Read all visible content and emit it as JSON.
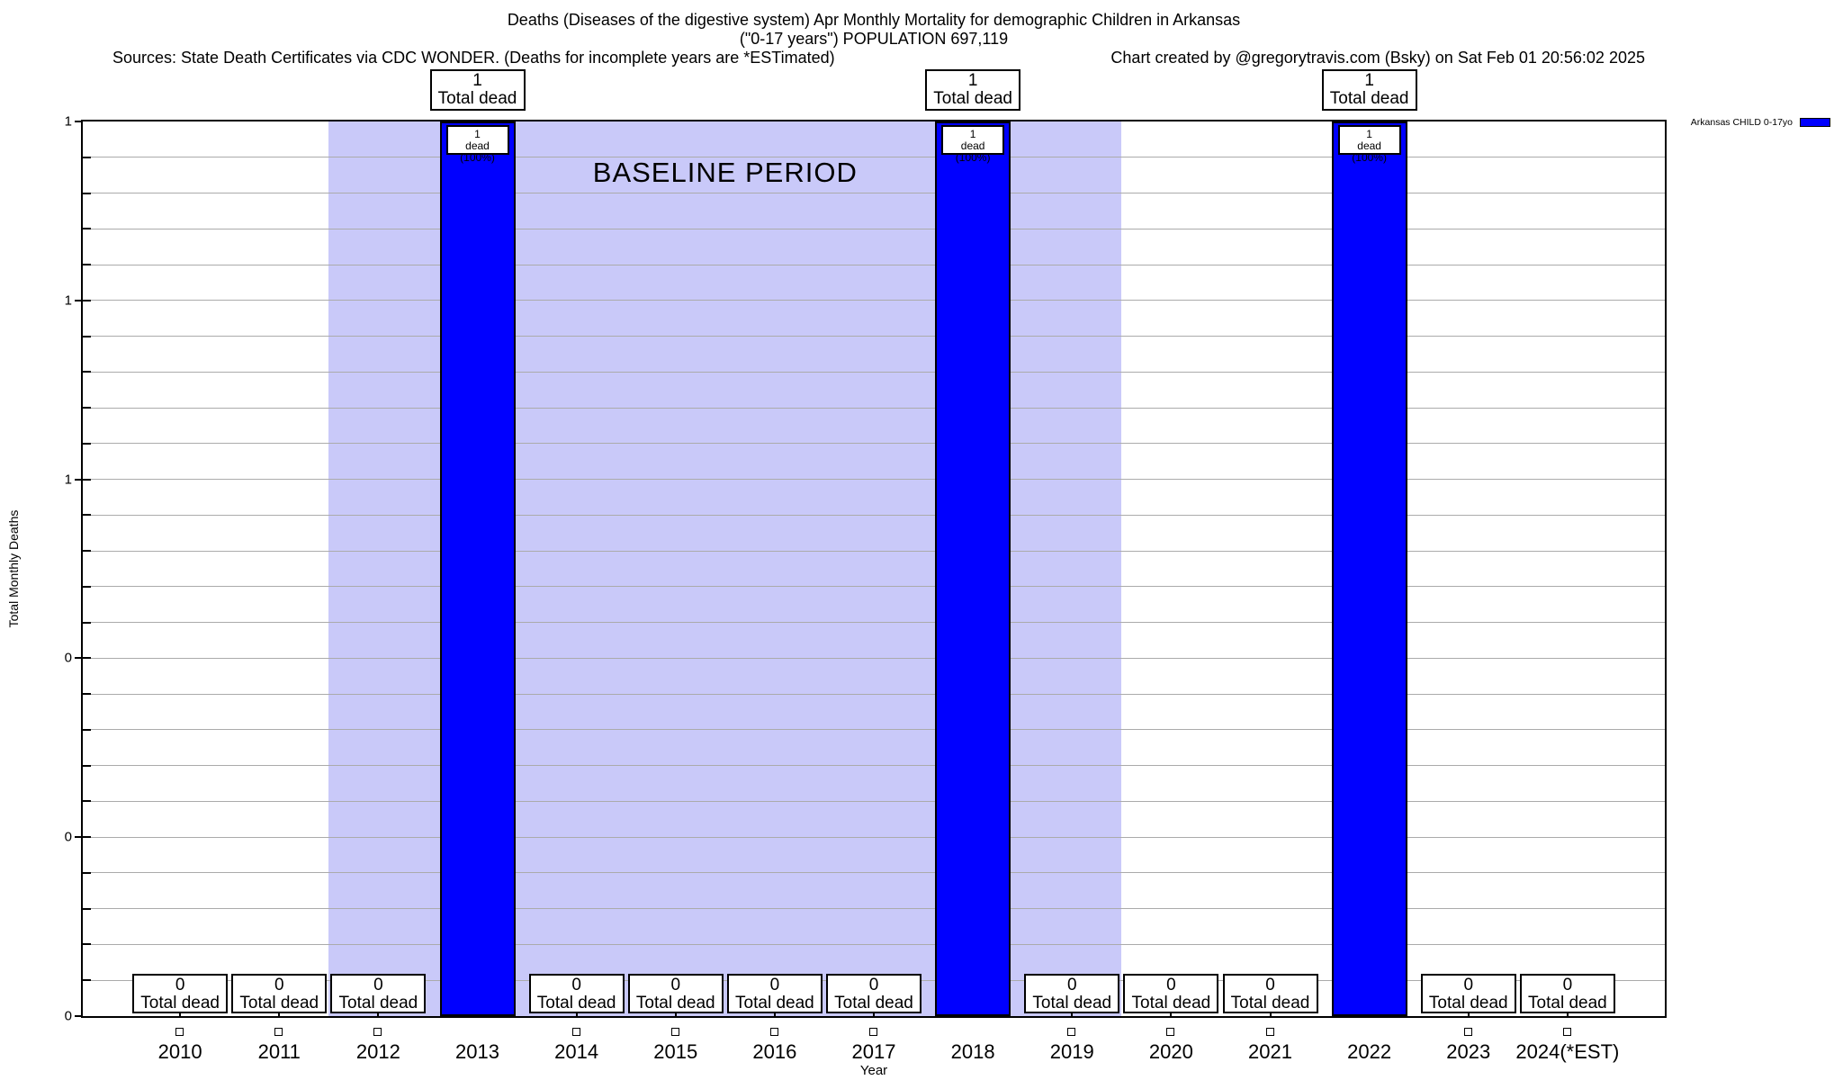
{
  "header": {
    "title_line1": "Deaths (Diseases of the digestive system) Apr Monthly Mortality for demographic Children in Arkansas",
    "title_line2": "(\"0-17 years\") POPULATION 697,119",
    "sources_left": "Sources: State Death Certificates via CDC WONDER. (Deaths for incomplete years are *ESTimated)",
    "sources_right": "Chart created by @gregorytravis.com (Bsky) on Sat Feb 01 20:56:02 2025"
  },
  "legend": {
    "swatch_color": "#0000ff"
  },
  "chart_data": {
    "type": "bar",
    "title": "Deaths (Diseases of the digestive system) Apr Monthly Mortality for demographic Children in Arkansas (\"0-17 years\") POPULATION 697,119",
    "xlabel": "Year",
    "ylabel": "Total Monthly Deaths",
    "ylim": [
      0,
      1
    ],
    "grid": true,
    "legend_position": "top-right-outside",
    "y_tick_labels_top_to_bottom": [
      "1",
      "1",
      "1",
      "0",
      "0",
      "0"
    ],
    "y_minor_divisions": 25,
    "categories": [
      "2010",
      "2011",
      "2012",
      "2013",
      "2014",
      "2015",
      "2016",
      "2017",
      "2018",
      "2019",
      "2020",
      "2021",
      "2022",
      "2023",
      "2024(*EST)"
    ],
    "series": [
      {
        "name": "Arkansas CHILD 0-17yo",
        "color": "#0000ff",
        "values": [
          0,
          0,
          0,
          1,
          0,
          0,
          0,
          0,
          1,
          0,
          0,
          0,
          1,
          0,
          0
        ]
      }
    ],
    "baseline_period": {
      "label": "BASELINE PERIOD",
      "from": "2012",
      "to": "2019",
      "color": "#c9c9f9"
    },
    "annotations": {
      "zero_box_line1": "0",
      "zero_box_line2": "Total dead",
      "one_box_line1": "1",
      "one_box_line2": "Total dead",
      "bar_inner_line1": "1",
      "bar_inner_line2": "dead (100%)"
    },
    "colors": {
      "bar": "#0000ff",
      "baseline_band": "#c9c9f9",
      "grid": "#ababab",
      "border": "#000000"
    }
  }
}
